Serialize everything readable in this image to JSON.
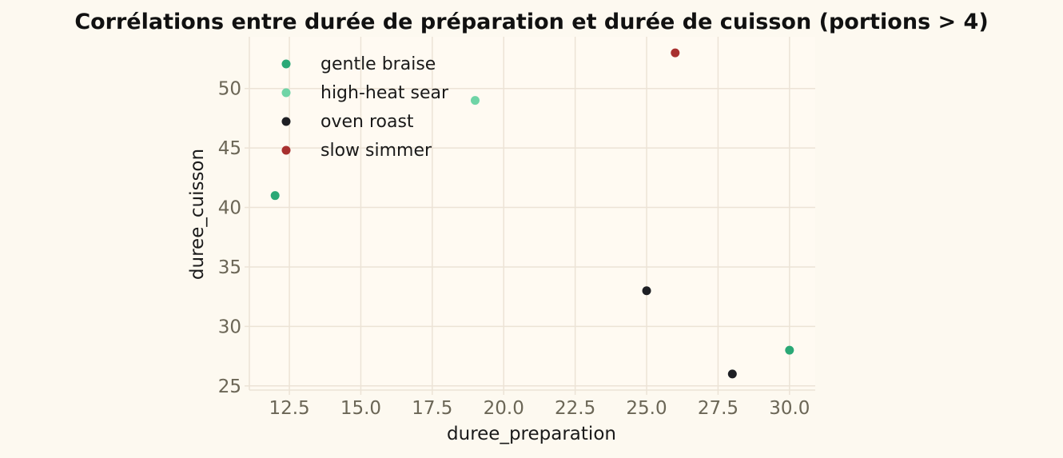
{
  "chart_data": {
    "type": "scatter",
    "title": "Corrélations entre durée de préparation et durée de cuisson (portions > 4)",
    "xlabel": "duree_preparation",
    "ylabel": "duree_cuisson",
    "xlim": [
      11.1,
      30.9
    ],
    "ylim": [
      24.65,
      54.35
    ],
    "xticks": [
      12.5,
      15.0,
      17.5,
      20.0,
      22.5,
      25.0,
      27.5,
      30.0
    ],
    "xtick_labels": [
      "12.5",
      "15.0",
      "17.5",
      "20.0",
      "22.5",
      "25.0",
      "27.5",
      "30.0"
    ],
    "yticks": [
      25,
      30,
      35,
      40,
      45,
      50
    ],
    "ytick_labels": [
      "25",
      "30",
      "35",
      "40",
      "45",
      "50"
    ],
    "grid": true,
    "legend_position": "top-left",
    "series": [
      {
        "name": "gentle braise",
        "color": "#2aa876",
        "points": [
          {
            "x": 12,
            "y": 41
          },
          {
            "x": 30,
            "y": 28
          }
        ]
      },
      {
        "name": "high-heat sear",
        "color": "#6fd4a6",
        "points": [
          {
            "x": 19,
            "y": 49
          }
        ]
      },
      {
        "name": "oven roast",
        "color": "#1e1f24",
        "points": [
          {
            "x": 25,
            "y": 33
          },
          {
            "x": 28,
            "y": 26
          }
        ]
      },
      {
        "name": "slow simmer",
        "color": "#a8302f",
        "points": [
          {
            "x": 26,
            "y": 53
          }
        ]
      }
    ],
    "colors": {
      "background": "#fdf9f0",
      "plot_background": "#fffaf2",
      "grid": "#ece3d6",
      "tick_label": "#6b6656",
      "text": "#1a1a1a"
    }
  }
}
